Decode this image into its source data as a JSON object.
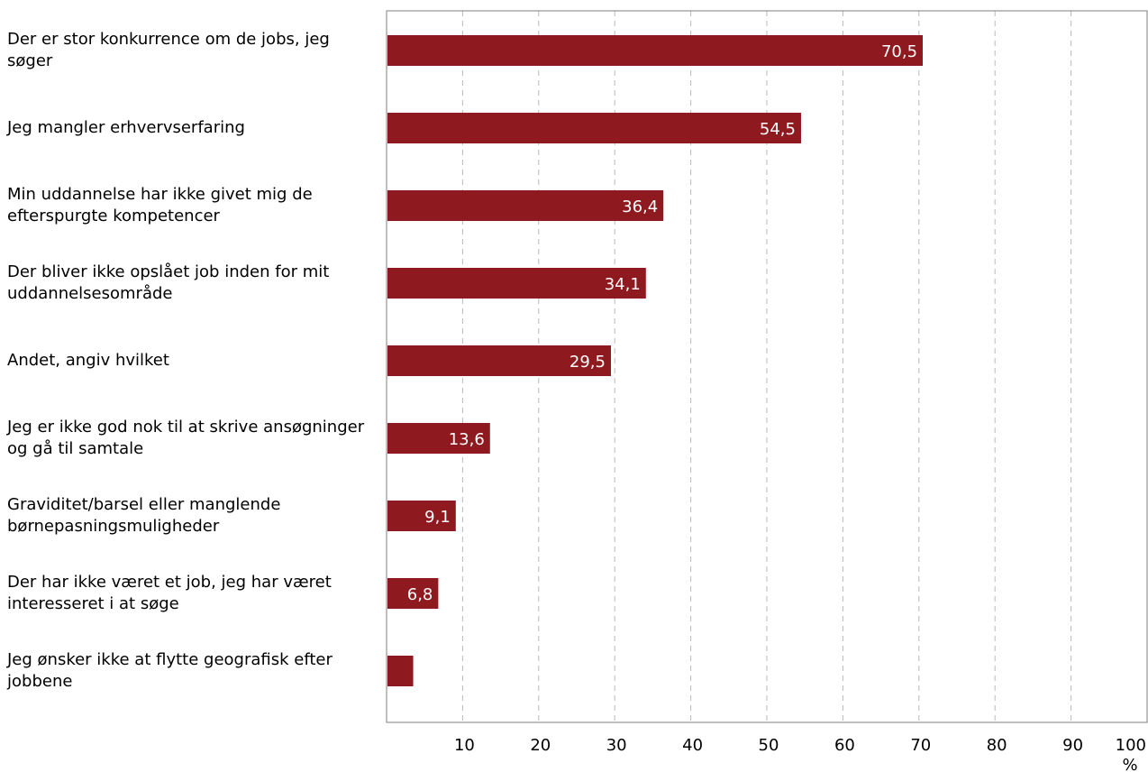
{
  "chart_data": {
    "type": "bar",
    "orientation": "horizontal",
    "categories": [
      "Der er stor konkurrence om de jobs, jeg søger",
      "Jeg mangler erhvervserfaring",
      "Min uddannelse har ikke givet mig de efterspurgte kompetencer",
      "Der bliver ikke opslået job inden for mit uddannelsesområde",
      "Andet, angiv hvilket",
      "Jeg er ikke god nok til at skrive ansøgninger og gå til samtale",
      "Graviditet/barsel eller manglende børnepasningsmuligheder",
      "Der har ikke været et job, jeg har været interesseret i at søge",
      "Jeg ønsker ikke at flytte geografisk efter jobbene"
    ],
    "values": [
      70.5,
      54.5,
      36.4,
      34.1,
      29.5,
      13.6,
      9.1,
      6.8,
      3.5
    ],
    "value_labels": [
      "70,5",
      "54,5",
      "36,4",
      "34,1",
      "29,5",
      "13,6",
      "9,1",
      "6,8",
      ""
    ],
    "xticks": [
      "10",
      "20",
      "30",
      "40",
      "50",
      "60",
      "70",
      "80",
      "90",
      "100"
    ],
    "xlim": [
      0,
      100
    ],
    "xunit": "%",
    "bar_color": "#8e1a20",
    "grid": "vertical dashed"
  }
}
